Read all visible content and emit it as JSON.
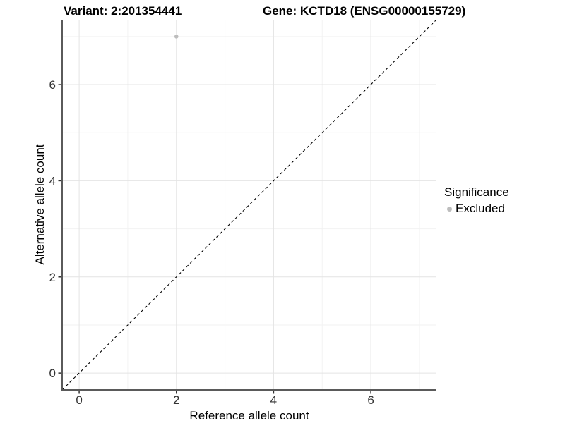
{
  "header": {
    "note": "two bold plot titles shown above the panel"
  },
  "chart_data": {
    "type": "scatter",
    "titles": {
      "left": "Variant: 2:201354441",
      "right": "Gene: KCTD18 (ENSG00000155729)"
    },
    "xlabel": "Reference allele count",
    "ylabel": "Alternative allele count",
    "xlim": [
      -0.35,
      7.35
    ],
    "ylim": [
      -0.35,
      7.35
    ],
    "xticks": [
      0,
      2,
      4,
      6
    ],
    "yticks": [
      0,
      2,
      4,
      6
    ],
    "minor_gridlines": [
      1,
      3,
      5,
      7
    ],
    "grid": "on",
    "reference_line": {
      "type": "identity",
      "equation": "y = x",
      "style": "dashed",
      "color": "#000000",
      "from": -0.35,
      "to": 7.35
    },
    "series": [
      {
        "name": "Excluded",
        "color": "#bdbdbd",
        "points": [
          {
            "x": 2,
            "y": 7
          }
        ]
      }
    ],
    "legend": {
      "title": "Significance",
      "position": "right",
      "items": [
        {
          "label": "Excluded",
          "color": "#bdbdbd",
          "marker": "dot"
        }
      ]
    },
    "colors": {
      "background": "#ffffff",
      "grid_major": "#e4e4e4",
      "grid_minor": "#f2f2f2",
      "axis_line": "#5a5a5a",
      "tick_mark": "#333333",
      "tick_label": "#333333",
      "point": "#bdbdbd"
    }
  }
}
